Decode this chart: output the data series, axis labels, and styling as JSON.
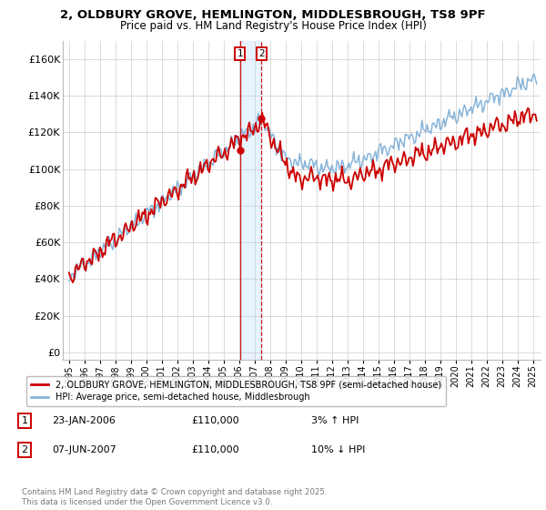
{
  "title1": "2, OLDBURY GROVE, HEMLINGTON, MIDDLESBROUGH, TS8 9PF",
  "title2": "Price paid vs. HM Land Registry's House Price Index (HPI)",
  "yticks": [
    0,
    20000,
    40000,
    60000,
    80000,
    100000,
    120000,
    140000,
    160000
  ],
  "ytick_labels": [
    "£0",
    "£20K",
    "£40K",
    "£60K",
    "£80K",
    "£100K",
    "£120K",
    "£140K",
    "£160K"
  ],
  "ylim": [
    -4000,
    170000
  ],
  "sale1_date": "23-JAN-2006",
  "sale1_price": 110000,
  "sale1_hpi": "3% ↑ HPI",
  "sale1_x": 2006.07,
  "sale2_date": "07-JUN-2007",
  "sale2_price": 110000,
  "sale2_hpi": "10% ↓ HPI",
  "sale2_x": 2007.44,
  "line_red_color": "#cc0000",
  "line_blue_color": "#88b4d8",
  "shade_color": "#ddeeff",
  "vline1_color": "#cc0000",
  "vline2_color": "#cc0000",
  "grid_color": "#cccccc",
  "legend_line1": "2, OLDBURY GROVE, HEMLINGTON, MIDDLESBROUGH, TS8 9PF (semi-detached house)",
  "legend_line2": "HPI: Average price, semi-detached house, Middlesbrough",
  "footer": "Contains HM Land Registry data © Crown copyright and database right 2025.\nThis data is licensed under the Open Government Licence v3.0."
}
